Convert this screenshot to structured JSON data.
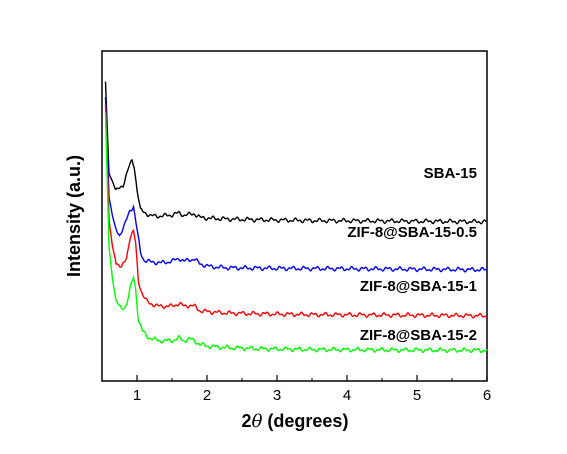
{
  "chart_data": {
    "type": "line",
    "title": "",
    "xlabel_prefix": "2",
    "xlabel_theta": "θ",
    "xlabel_suffix": " (degrees)",
    "ylabel": "Intensity (a.u.)",
    "xlim": [
      0.5,
      6
    ],
    "x_ticks": [
      1,
      2,
      3,
      4,
      5,
      6
    ],
    "y_ticks_labeled": false,
    "grid": false,
    "legend": "inline labels to the right of each curve",
    "series": [
      {
        "name": "SBA-15",
        "color": "#000000",
        "x": [
          0.55,
          0.6,
          0.65,
          0.7,
          0.8,
          0.88,
          0.93,
          0.96,
          1.0,
          1.05,
          1.1,
          1.2,
          1.35,
          1.5,
          1.6,
          1.67,
          1.75,
          1.82,
          1.9,
          2.05,
          2.3,
          2.8,
          3.5,
          4.5,
          6.0
        ],
        "y": [
          10.8,
          8.4,
          8.2,
          7.95,
          8.1,
          8.55,
          8.75,
          8.6,
          8.0,
          7.45,
          7.4,
          7.3,
          7.3,
          7.33,
          7.38,
          7.32,
          7.34,
          7.36,
          7.26,
          7.24,
          7.22,
          7.2,
          7.18,
          7.17,
          7.15
        ]
      },
      {
        "name": "ZIF-8@SBA-15-0.5",
        "color": "#0000ff",
        "x": [
          0.55,
          0.6,
          0.65,
          0.7,
          0.75,
          0.82,
          0.9,
          0.95,
          1.0,
          1.05,
          1.1,
          1.2,
          1.35,
          1.5,
          1.6,
          1.67,
          1.75,
          1.82,
          1.9,
          2.05,
          2.3,
          2.8,
          3.5,
          4.5,
          6.0
        ],
        "y": [
          10.4,
          7.8,
          7.3,
          6.95,
          6.8,
          7.05,
          7.45,
          7.55,
          6.95,
          6.35,
          6.15,
          6.1,
          6.08,
          6.12,
          6.2,
          6.12,
          6.16,
          6.18,
          6.05,
          5.98,
          5.95,
          5.94,
          5.93,
          5.92,
          5.9
        ]
      },
      {
        "name": "ZIF-8@SBA-15-1",
        "color": "#ff0000",
        "x": [
          0.55,
          0.6,
          0.65,
          0.7,
          0.78,
          0.85,
          0.9,
          0.95,
          0.98,
          1.02,
          1.08,
          1.15,
          1.3,
          1.5,
          1.6,
          1.67,
          1.75,
          1.82,
          1.9,
          2.05,
          2.3,
          2.8,
          3.5,
          4.5,
          6.0
        ],
        "y": [
          10.2,
          7.2,
          6.5,
          6.1,
          5.95,
          6.2,
          6.75,
          6.9,
          6.6,
          5.6,
          5.25,
          5.05,
          4.95,
          4.95,
          5.02,
          4.95,
          4.97,
          4.95,
          4.83,
          4.8,
          4.77,
          4.75,
          4.73,
          4.72,
          4.7
        ]
      },
      {
        "name": "ZIF-8@SBA-15-2",
        "color": "#00ff00",
        "x": [
          0.55,
          0.6,
          0.65,
          0.7,
          0.78,
          0.85,
          0.9,
          0.95,
          0.98,
          1.02,
          1.08,
          1.15,
          1.3,
          1.5,
          1.6,
          1.67,
          1.75,
          1.82,
          1.9,
          2.05,
          2.3,
          2.8,
          3.5,
          4.5,
          6.0
        ],
        "y": [
          10.0,
          6.5,
          5.65,
          5.1,
          4.85,
          5.0,
          5.4,
          5.7,
          5.4,
          4.6,
          4.3,
          4.15,
          4.05,
          4.05,
          4.12,
          4.05,
          4.1,
          4.05,
          3.95,
          3.9,
          3.87,
          3.84,
          3.82,
          3.81,
          3.8
        ]
      }
    ]
  }
}
